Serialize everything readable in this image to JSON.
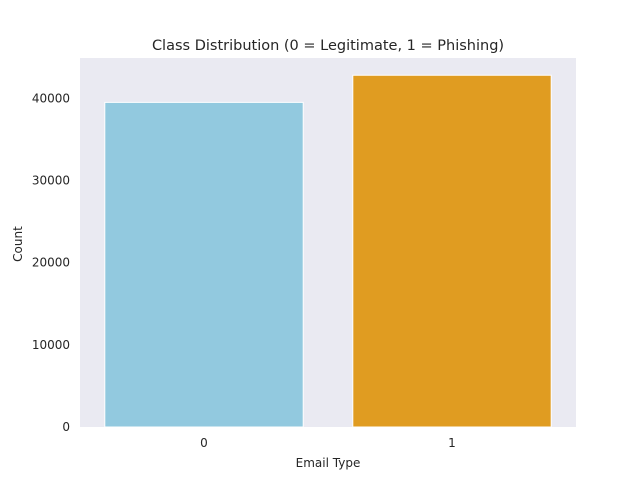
{
  "chart_data": {
    "type": "bar",
    "title": "Class Distribution (0 = Legitimate, 1 = Phishing)",
    "xlabel": "Email Type",
    "ylabel": "Count",
    "categories": [
      "0",
      "1"
    ],
    "values": [
      39500,
      42800
    ],
    "colors": [
      "#92c9df",
      "#e09c21"
    ],
    "ylim": [
      0,
      44900
    ],
    "yticks": [
      0,
      10000,
      20000,
      30000,
      40000
    ],
    "ytick_labels": [
      "0",
      "10000",
      "20000",
      "30000",
      "40000"
    ],
    "grid": false,
    "background": "#eaeaf2"
  }
}
